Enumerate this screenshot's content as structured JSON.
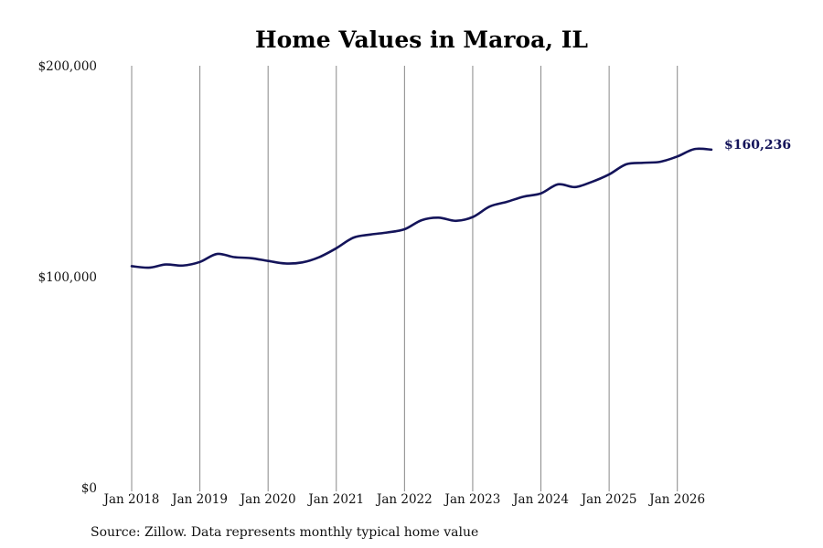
{
  "chart_data": {
    "type": "line",
    "title": "Home Values in Maroa, IL",
    "xlabel": "",
    "ylabel": "",
    "ylim": [
      0,
      200000
    ],
    "xlim": [
      "2018-01",
      "2026-07"
    ],
    "y_ticks": [
      {
        "value": 0,
        "label": "$0"
      },
      {
        "value": 100000,
        "label": "$100,000"
      },
      {
        "value": 200000,
        "label": "$200,000"
      }
    ],
    "x_ticks": [
      {
        "value": "2018-01",
        "label": "Jan 2018"
      },
      {
        "value": "2019-01",
        "label": "Jan 2019"
      },
      {
        "value": "2020-01",
        "label": "Jan 2020"
      },
      {
        "value": "2021-01",
        "label": "Jan 2021"
      },
      {
        "value": "2022-01",
        "label": "Jan 2022"
      },
      {
        "value": "2023-01",
        "label": "Jan 2023"
      },
      {
        "value": "2024-01",
        "label": "Jan 2024"
      },
      {
        "value": "2025-01",
        "label": "Jan 2025"
      },
      {
        "value": "2026-01",
        "label": "Jan 2026"
      }
    ],
    "grid": "vertical",
    "line_color": "#14145a",
    "end_label": "$160,236",
    "series": [
      {
        "x": [
          "2018-01",
          "2018-04",
          "2018-07",
          "2018-10",
          "2019-01",
          "2019-04",
          "2019-07",
          "2019-10",
          "2020-01",
          "2020-04",
          "2020-07",
          "2020-10",
          "2021-01",
          "2021-04",
          "2021-07",
          "2021-10",
          "2022-01",
          "2022-04",
          "2022-07",
          "2022-10",
          "2023-01",
          "2023-04",
          "2023-07",
          "2023-10",
          "2024-01",
          "2024-04",
          "2024-07",
          "2024-10",
          "2025-01",
          "2025-04",
          "2025-07",
          "2025-10",
          "2026-01",
          "2026-04",
          "2026-07"
        ],
        "values": [
          105000,
          104300,
          105800,
          105300,
          107000,
          110800,
          109300,
          108800,
          107500,
          106300,
          106800,
          109300,
          113500,
          118500,
          120000,
          121000,
          122500,
          126800,
          128000,
          126500,
          128300,
          133300,
          135500,
          138000,
          139500,
          143800,
          142500,
          145000,
          148500,
          153300,
          154000,
          154500,
          157000,
          160500,
          160236
        ]
      }
    ]
  },
  "source_note": "Source: Zillow. Data represents monthly typical home value"
}
